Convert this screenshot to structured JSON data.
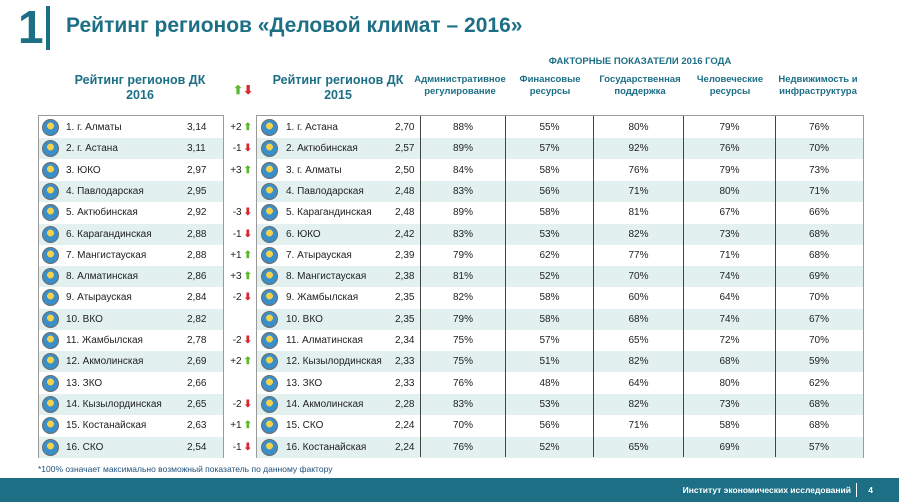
{
  "slide_number": "1",
  "title": "Рейтинг регионов «Деловой климат – 2016»",
  "factors_header": "ФАКТОРНЫЕ ПОКАЗАТЕЛИ 2016 ГОДА",
  "columns": {
    "rating2016": "Рейтинг регионов ДК 2016",
    "rating2015": "Рейтинг регионов ДК 2015",
    "admin": "Административное регулирование",
    "finance": "Финансовые ресурсы",
    "gov": "Государственная поддержка",
    "human": "Человеческие ресурсы",
    "realty": "Недвижимость и инфраструктура"
  },
  "arrows_header": {
    "up": "⬆",
    "down": "⬇"
  },
  "rows": [
    {
      "r16": "1. г. Алматы",
      "s16": "3,14",
      "chg": "+2",
      "dir": "up",
      "r15": "1. г. Астана",
      "s15": "2,70",
      "admin": "88%",
      "finance": "55%",
      "gov": "80%",
      "human": "79%",
      "realty": "76%"
    },
    {
      "r16": "2. г. Астана",
      "s16": "3,11",
      "chg": "-1",
      "dir": "down",
      "r15": "2. Актюбинская",
      "s15": "2,57",
      "admin": "89%",
      "finance": "57%",
      "gov": "92%",
      "human": "76%",
      "realty": "70%"
    },
    {
      "r16": "3. ЮКО",
      "s16": "2,97",
      "chg": "+3",
      "dir": "up",
      "r15": "3. г. Алматы",
      "s15": "2,50",
      "admin": "84%",
      "finance": "58%",
      "gov": "76%",
      "human": "79%",
      "realty": "73%"
    },
    {
      "r16": "4. Павлодарская",
      "s16": "2,95",
      "chg": "",
      "dir": "",
      "r15": "4. Павлодарская",
      "s15": "2,48",
      "admin": "83%",
      "finance": "56%",
      "gov": "71%",
      "human": "80%",
      "realty": "71%"
    },
    {
      "r16": "5. Актюбинская",
      "s16": "2,92",
      "chg": "-3",
      "dir": "down",
      "r15": "5. Карагандинская",
      "s15": "2,48",
      "admin": "89%",
      "finance": "58%",
      "gov": "81%",
      "human": "67%",
      "realty": "66%"
    },
    {
      "r16": "6. Карагандинская",
      "s16": "2,88",
      "chg": "-1",
      "dir": "down",
      "r15": "6. ЮКО",
      "s15": "2,42",
      "admin": "83%",
      "finance": "53%",
      "gov": "82%",
      "human": "73%",
      "realty": "68%"
    },
    {
      "r16": "7. Мангистауская",
      "s16": "2,88",
      "chg": "+1",
      "dir": "up",
      "r15": "7. Атырауская",
      "s15": "2,39",
      "admin": "79%",
      "finance": "62%",
      "gov": "77%",
      "human": "71%",
      "realty": "68%"
    },
    {
      "r16": "8. Алматинская",
      "s16": "2,86",
      "chg": "+3",
      "dir": "up",
      "r15": "8. Мангистауская",
      "s15": "2,38",
      "admin": "81%",
      "finance": "52%",
      "gov": "70%",
      "human": "74%",
      "realty": "69%"
    },
    {
      "r16": "9. Атырауская",
      "s16": "2,84",
      "chg": "-2",
      "dir": "down",
      "r15": "9. Жамбылская",
      "s15": "2,35",
      "admin": "82%",
      "finance": "58%",
      "gov": "60%",
      "human": "64%",
      "realty": "70%"
    },
    {
      "r16": "10. ВКО",
      "s16": "2,82",
      "chg": "",
      "dir": "",
      "r15": "10. ВКО",
      "s15": "2,35",
      "admin": "79%",
      "finance": "58%",
      "gov": "68%",
      "human": "74%",
      "realty": "67%"
    },
    {
      "r16": "11. Жамбылская",
      "s16": "2,78",
      "chg": "-2",
      "dir": "down",
      "r15": "11. Алматинская",
      "s15": "2,34",
      "admin": "75%",
      "finance": "57%",
      "gov": "65%",
      "human": "72%",
      "realty": "70%"
    },
    {
      "r16": "12. Акмолинская",
      "s16": "2,69",
      "chg": "+2",
      "dir": "up",
      "r15": "12. Кызылординская",
      "s15": "2,33",
      "admin": "75%",
      "finance": "51%",
      "gov": "82%",
      "human": "68%",
      "realty": "59%"
    },
    {
      "r16": "13. ЗКО",
      "s16": "2,66",
      "chg": "",
      "dir": "",
      "r15": "13. ЗКО",
      "s15": "2,33",
      "admin": "76%",
      "finance": "48%",
      "gov": "64%",
      "human": "80%",
      "realty": "62%"
    },
    {
      "r16": "14. Кызылординская",
      "s16": "2,65",
      "chg": "-2",
      "dir": "down",
      "r15": "14. Акмолинская",
      "s15": "2,28",
      "admin": "83%",
      "finance": "53%",
      "gov": "82%",
      "human": "73%",
      "realty": "68%"
    },
    {
      "r16": "15. Костанайская",
      "s16": "2,63",
      "chg": "+1",
      "dir": "up",
      "r15": "15. СКО",
      "s15": "2,24",
      "admin": "70%",
      "finance": "56%",
      "gov": "71%",
      "human": "58%",
      "realty": "68%"
    },
    {
      "r16": "16. СКО",
      "s16": "2,54",
      "chg": "-1",
      "dir": "down",
      "r15": "16. Костанайская",
      "s15": "2,24",
      "admin": "76%",
      "finance": "52%",
      "gov": "65%",
      "human": "69%",
      "realty": "57%"
    }
  ],
  "footnote": "*100% означает максимально возможный показатель по данному фактору",
  "footer_label": "Институт экономических исследований",
  "page_number": "4",
  "colors": {
    "accent": "#1d6f86",
    "alt_row": "#e2f1f0",
    "up": "#5cb82e",
    "down": "#d7282f"
  }
}
